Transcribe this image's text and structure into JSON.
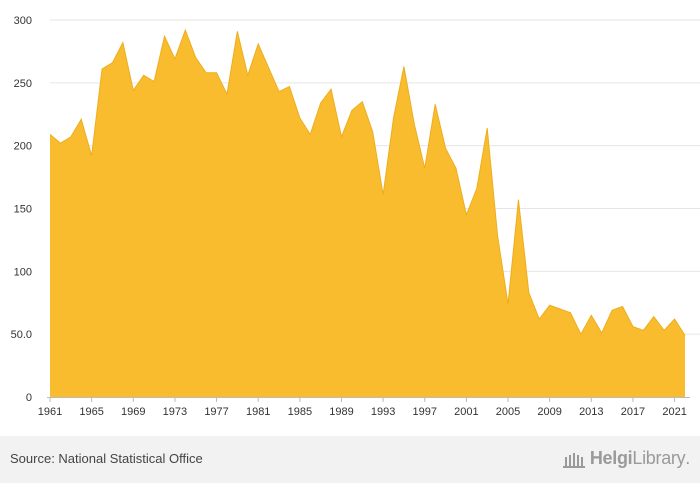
{
  "chart_data": {
    "type": "area",
    "title": "",
    "xlabel": "",
    "ylabel": "",
    "ylim": [
      0,
      300
    ],
    "xlim": [
      1961,
      2022
    ],
    "grid": true,
    "legend": "none",
    "color": "#F9BC2E",
    "y_ticks": [
      0,
      50,
      100,
      150,
      200,
      250,
      300
    ],
    "y_tick_labels": [
      "0",
      "50.0",
      "100",
      "150",
      "200",
      "250",
      "300"
    ],
    "x_tick_labels": [
      "1961",
      "1965",
      "1969",
      "1973",
      "1977",
      "1981",
      "1985",
      "1989",
      "1993",
      "1997",
      "2001",
      "2005",
      "2009",
      "2013",
      "2017",
      "2021"
    ],
    "x": [
      1961,
      1962,
      1963,
      1964,
      1965,
      1966,
      1967,
      1968,
      1969,
      1970,
      1971,
      1972,
      1973,
      1974,
      1975,
      1976,
      1977,
      1978,
      1979,
      1980,
      1981,
      1982,
      1983,
      1984,
      1985,
      1986,
      1987,
      1988,
      1989,
      1990,
      1991,
      1992,
      1993,
      1994,
      1995,
      1996,
      1997,
      1998,
      1999,
      2000,
      2001,
      2002,
      2003,
      2004,
      2005,
      2006,
      2007,
      2008,
      2009,
      2010,
      2011,
      2012,
      2013,
      2014,
      2015,
      2016,
      2017,
      2018,
      2019,
      2020,
      2021,
      2022
    ],
    "values": [
      209,
      202,
      207,
      221,
      192,
      261,
      266,
      282,
      244,
      256,
      251,
      287,
      269,
      292,
      270,
      258,
      258,
      241,
      291,
      256,
      281,
      262,
      243,
      247,
      222,
      209,
      234,
      245,
      207,
      228,
      235,
      211,
      161,
      222,
      263,
      217,
      182,
      233,
      198,
      182,
      145,
      166,
      214,
      128,
      74,
      157,
      83,
      62,
      73,
      70,
      67,
      50,
      65,
      51,
      69,
      72,
      56,
      53,
      64,
      53,
      62,
      49
    ]
  },
  "footer": {
    "source": "Source: National Statistical Office",
    "brand_strong": "Helgi",
    "brand_light": "Library",
    "brand_dot": "."
  }
}
